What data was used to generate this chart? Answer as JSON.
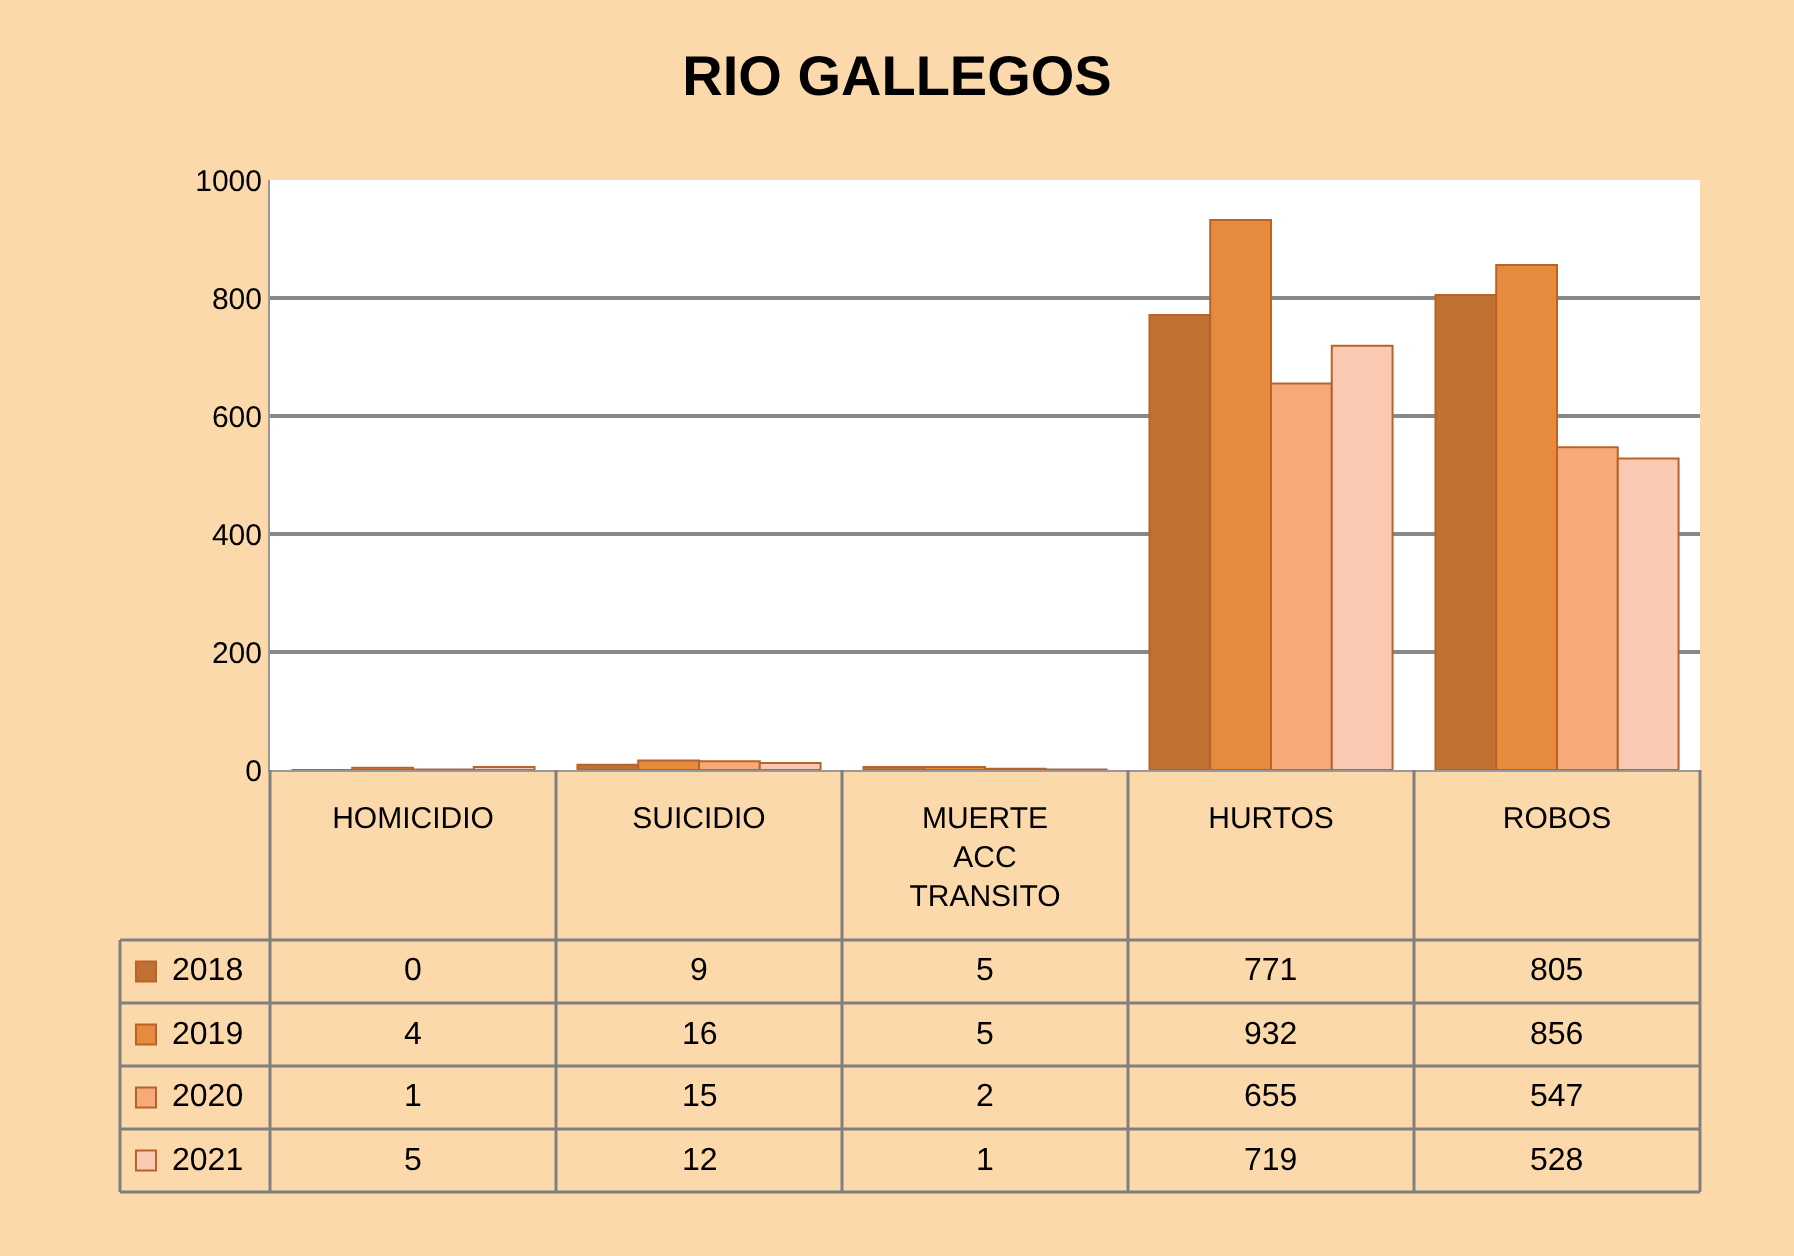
{
  "chart_data": {
    "type": "bar",
    "title": "RIO GALLEGOS",
    "categories": [
      "HOMICIDIO",
      "SUICIDIO",
      "MUERTE ACC TRANSITO",
      "HURTOS",
      "ROBOS"
    ],
    "series": [
      {
        "name": "2018",
        "color": "#c07030",
        "values": [
          0,
          9,
          5,
          771,
          805
        ]
      },
      {
        "name": "2019",
        "color": "#e68a3e",
        "values": [
          4,
          16,
          5,
          932,
          856
        ]
      },
      {
        "name": "2020",
        "color": "#f7aa78",
        "values": [
          1,
          15,
          2,
          655,
          547
        ]
      },
      {
        "name": "2021",
        "color": "#f9c9b2",
        "values": [
          5,
          12,
          1,
          719,
          528
        ]
      }
    ],
    "ylim": [
      0,
      1000
    ],
    "yticks": [
      0,
      200,
      400,
      600,
      800,
      1000
    ],
    "grid": "y",
    "data_labels": true,
    "legend": "bottom left"
  }
}
